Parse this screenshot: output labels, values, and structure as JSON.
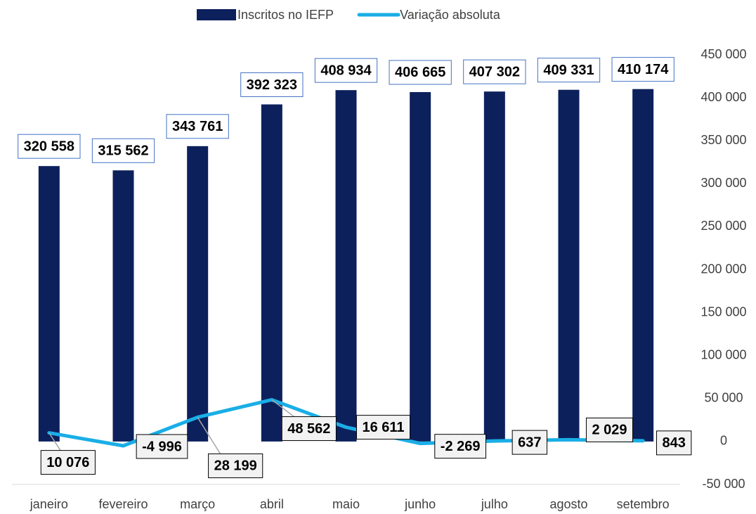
{
  "chart_data": {
    "type": "combo",
    "categories": [
      "janeiro",
      "fevereiro",
      "março",
      "abril",
      "maio",
      "junho",
      "julho",
      "agosto",
      "setembro"
    ],
    "series": [
      {
        "name": "Inscritos no IEFP",
        "type": "bar",
        "color": "#0c205c",
        "values": [
          320558,
          315562,
          343761,
          392323,
          408934,
          406665,
          407302,
          409331,
          410174
        ],
        "value_labels": [
          "320 558",
          "315 562",
          "343 761",
          "392 323",
          "408 934",
          "406 665",
          "407 302",
          "409 331",
          "410 174"
        ]
      },
      {
        "name": "Variação absoluta",
        "type": "line",
        "color": "#1aaee6",
        "values": [
          10076,
          -4996,
          28199,
          48562,
          16611,
          -2269,
          637,
          2029,
          843
        ],
        "value_labels": [
          "10 076",
          "-4 996",
          "28 199",
          "48 562",
          "16 611",
          "-2 269",
          "637",
          "2 029",
          "843"
        ]
      }
    ],
    "ylim": [
      -50000,
      450000
    ],
    "yticks": [
      {
        "value": -50000,
        "label": "-50 000"
      },
      0,
      {
        "value": 50000,
        "label": "50 000"
      },
      {
        "value": 100000,
        "label": "100 000"
      },
      {
        "value": 150000,
        "label": "150 000"
      },
      {
        "value": 200000,
        "label": "200 000"
      },
      {
        "value": 250000,
        "label": "250 000"
      },
      {
        "value": 300000,
        "label": "300 000"
      },
      {
        "value": 350000,
        "label": "350 000"
      },
      {
        "value": 400000,
        "label": "400 000"
      },
      {
        "value": 450000,
        "label": "450 000"
      }
    ],
    "legend": "top"
  }
}
